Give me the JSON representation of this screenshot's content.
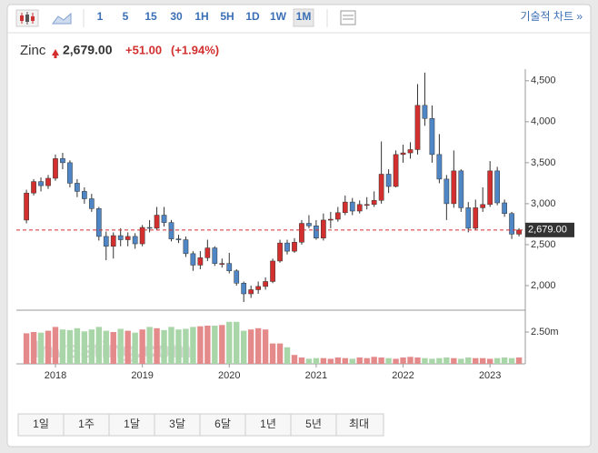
{
  "toolbar": {
    "intervals": [
      "1",
      "5",
      "15",
      "30",
      "1H",
      "5H",
      "1D",
      "1W",
      "1M"
    ],
    "selected": "1M",
    "technical": "기술적 차트 »"
  },
  "header": {
    "name": "Zinc",
    "price": "2,679.00",
    "change": "+51.00",
    "change_pct": "(+1.94%)"
  },
  "ranges": [
    "1일",
    "1주",
    "1달",
    "3달",
    "6달",
    "1년",
    "5년",
    "최대"
  ],
  "chart_data": {
    "type": "candlestick",
    "categories": [
      null,
      null,
      null,
      null,
      "2018",
      null,
      null,
      null,
      null,
      null,
      null,
      null,
      null,
      null,
      null,
      null,
      "2019",
      null,
      null,
      null,
      null,
      null,
      null,
      null,
      null,
      null,
      null,
      null,
      "2020",
      null,
      null,
      null,
      null,
      null,
      null,
      null,
      null,
      null,
      null,
      null,
      "2021",
      null,
      null,
      null,
      null,
      null,
      null,
      null,
      null,
      null,
      null,
      null,
      "2022",
      null,
      null,
      null,
      null,
      null,
      null,
      null,
      null,
      null,
      null,
      null,
      "2023",
      null,
      null,
      null,
      null
    ],
    "open": [
      2800,
      3130,
      3270,
      3220,
      3310,
      3550,
      3500,
      3250,
      3150,
      3060,
      2940,
      2600,
      2480,
      2610,
      2560,
      2600,
      2510,
      2710,
      2700,
      2860,
      2770,
      2570,
      2560,
      2390,
      2250,
      2340,
      2460,
      2270,
      2270,
      2180,
      2030,
      1900,
      1950,
      1990,
      2050,
      2300,
      2520,
      2420,
      2530,
      2760,
      2730,
      2580,
      2800,
      2810,
      2890,
      3020,
      2910,
      2990,
      2990,
      3040,
      3360,
      3210,
      3600,
      3620,
      3660,
      4200,
      4040,
      3600,
      3300,
      3000,
      3400,
      2950,
      2700,
      2950,
      2990,
      3400,
      3010,
      2880,
      2628
    ],
    "high": [
      3170,
      3300,
      3320,
      3350,
      3600,
      3620,
      3530,
      3300,
      3200,
      3120,
      2960,
      2660,
      2650,
      2700,
      2650,
      2640,
      2740,
      2800,
      2960,
      2960,
      2800,
      2620,
      2600,
      2420,
      2420,
      2560,
      2480,
      2330,
      2400,
      2200,
      2050,
      2000,
      2050,
      2100,
      2330,
      2560,
      2560,
      2580,
      2800,
      2860,
      2800,
      2880,
      2900,
      2960,
      3100,
      3070,
      3040,
      3080,
      3150,
      3760,
      3420,
      3650,
      3720,
      3750,
      4460,
      4600,
      4200,
      3850,
      3350,
      3650,
      3420,
      3020,
      3050,
      3200,
      3520,
      3450,
      3050,
      2900,
      2700
    ],
    "low": [
      2760,
      3100,
      3150,
      3180,
      3280,
      3420,
      3200,
      3080,
      3000,
      2900,
      2550,
      2310,
      2330,
      2480,
      2480,
      2450,
      2480,
      2650,
      2680,
      2720,
      2540,
      2520,
      2350,
      2180,
      2200,
      2300,
      2240,
      2220,
      2150,
      2000,
      1800,
      1850,
      1900,
      1950,
      2030,
      2280,
      2380,
      2400,
      2500,
      2700,
      2560,
      2550,
      2700,
      2780,
      2860,
      2860,
      2880,
      2930,
      2960,
      3000,
      3130,
      3200,
      3500,
      3550,
      3600,
      3950,
      3500,
      3250,
      2800,
      2950,
      2900,
      2650,
      2680,
      2900,
      2960,
      2980,
      2840,
      2570,
      2600
    ],
    "close": [
      3130,
      3270,
      3220,
      3310,
      3550,
      3500,
      3250,
      3150,
      3060,
      2940,
      2600,
      2480,
      2610,
      2560,
      2600,
      2510,
      2710,
      2700,
      2860,
      2770,
      2570,
      2560,
      2390,
      2250,
      2340,
      2460,
      2270,
      2270,
      2180,
      2030,
      1900,
      1950,
      1990,
      2050,
      2300,
      2520,
      2420,
      2530,
      2760,
      2730,
      2580,
      2800,
      2810,
      2890,
      3020,
      2910,
      2990,
      2990,
      3040,
      3360,
      3210,
      3600,
      3620,
      3660,
      4200,
      4040,
      3600,
      3300,
      3000,
      3400,
      2950,
      2700,
      2950,
      2990,
      3400,
      3010,
      2880,
      2628,
      2679
    ],
    "volume": [
      2400000,
      2500000,
      2450000,
      2600000,
      2900000,
      2700000,
      2650000,
      2800000,
      2550000,
      2700000,
      2900000,
      2600000,
      2500000,
      2750000,
      2600000,
      2450000,
      2700000,
      2900000,
      2800000,
      2650000,
      2900000,
      2700000,
      2750000,
      2900000,
      2950000,
      3000000,
      3000000,
      3050000,
      3300000,
      3300000,
      2600000,
      2700000,
      2800000,
      2700000,
      1600000,
      1600000,
      1300000,
      700000,
      500000,
      400000,
      450000,
      450000,
      400000,
      500000,
      450000,
      400000,
      500000,
      450000,
      550000,
      500000,
      450000,
      400000,
      500000,
      550000,
      500000,
      450000,
      400000,
      450000,
      500000,
      450000,
      400000,
      500000,
      450000,
      450000,
      400000,
      450000,
      500000,
      450000,
      500000
    ],
    "ylim": [
      1700,
      4620
    ],
    "yticks": [
      {
        "value": 2000,
        "label": "2,000"
      },
      {
        "value": 2500,
        "label": "2,500"
      },
      {
        "value": 3000,
        "label": "3,000"
      },
      {
        "value": 3500,
        "label": "3,500"
      },
      {
        "value": 4000,
        "label": "4,000"
      },
      {
        "value": 4500,
        "label": "4,500"
      }
    ],
    "volume_lim": [
      0,
      4000000
    ],
    "volume_ticks": [
      {
        "value": 2500000,
        "label": "2.50m"
      }
    ],
    "price_tag": {
      "value": 2679,
      "label": "2,679.00"
    },
    "watermark": "Investing.com",
    "up_color": "#d32f2f",
    "down_color": "#4f86c6",
    "volume_up_color": "#e58a8a",
    "volume_down_color": "#a9d6a9",
    "grid": false
  }
}
